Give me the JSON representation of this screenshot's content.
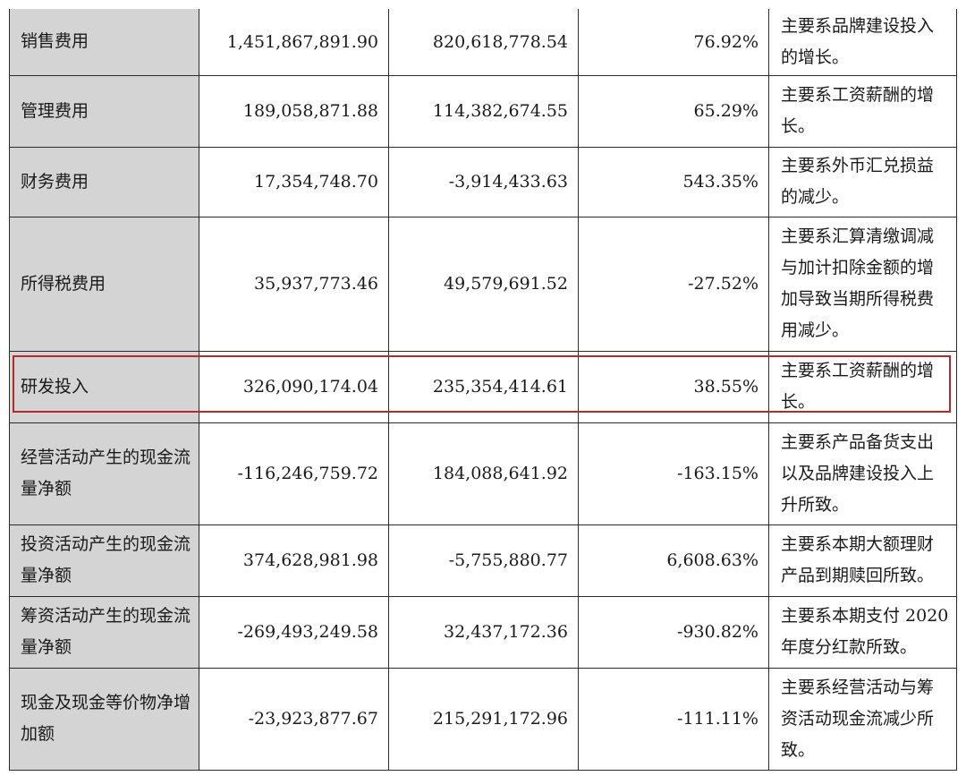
{
  "rows": [
    {
      "item": "销售费用",
      "current": "1,451,867,891.90",
      "previous": "820,618,778.54",
      "change": "76.92%",
      "reason": "主要系品牌建设投入的增长。"
    },
    {
      "item": "管理费用",
      "current": "189,058,871.88",
      "previous": "114,382,674.55",
      "change": "65.29%",
      "reason": "主要系工资薪酬的增长。"
    },
    {
      "item": "财务费用",
      "current": "17,354,748.70",
      "previous": "-3,914,433.63",
      "change": "543.35%",
      "reason": "主要系外币汇兑损益的减少。"
    },
    {
      "item": "所得税费用",
      "current": "35,937,773.46",
      "previous": "49,579,691.52",
      "change": "-27.52%",
      "reason": "主要系汇算清缴调减与加计扣除金额的增加导致当期所得税费用减少。"
    },
    {
      "item": "研发投入",
      "current": "326,090,174.04",
      "previous": "235,354,414.61",
      "change": "38.55%",
      "reason": "主要系工资薪酬的增长。"
    },
    {
      "item": "经营活动产生的现金流量净额",
      "current": "-116,246,759.72",
      "previous": "184,088,641.92",
      "change": "-163.15%",
      "reason": "主要系产品备货支出以及品牌建设投入上升所致。"
    },
    {
      "item": "投资活动产生的现金流量净额",
      "current": "374,628,981.98",
      "previous": "-5,755,880.77",
      "change": "6,608.63%",
      "reason": "主要系本期大额理财产品到期赎回所致。"
    },
    {
      "item": "筹资活动产生的现金流量净额",
      "current": "-269,493,249.58",
      "previous": "32,437,172.36",
      "change": "-930.82%",
      "reason": "主要系本期支付 2020 年度分红款所致。"
    },
    {
      "item": "现金及现金等价物净增加额",
      "current": "-23,923,877.67",
      "previous": "215,291,172.96",
      "change": "-111.11%",
      "reason": "主要系经营活动与筹资活动现金流减少所致。"
    }
  ],
  "highlight_color": "#b42a2a",
  "label_bg": "#d4d4d4"
}
